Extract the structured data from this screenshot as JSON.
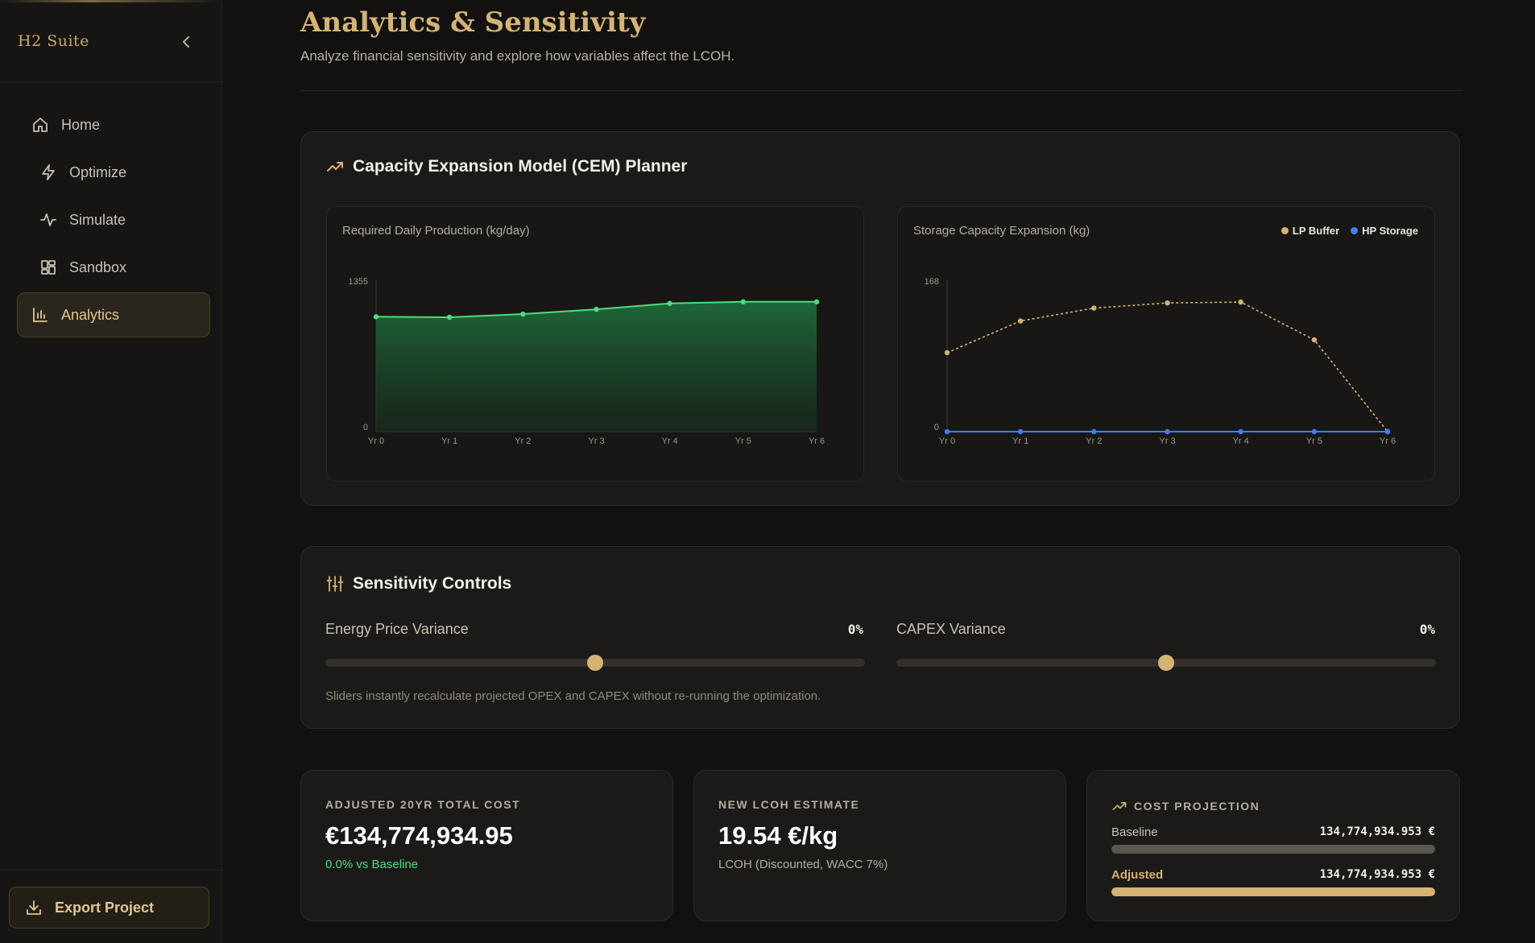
{
  "sidebar": {
    "brand": "H2 Suite",
    "items": [
      {
        "label": "Home",
        "icon": "home-icon"
      },
      {
        "label": "Optimize",
        "icon": "lightning-icon"
      },
      {
        "label": "Simulate",
        "icon": "pulse-icon"
      },
      {
        "label": "Sandbox",
        "icon": "grid-icon"
      },
      {
        "label": "Analytics",
        "icon": "bar-chart-icon",
        "active": true
      }
    ],
    "export_label": "Export Project"
  },
  "header": {
    "title": "Analytics & Sensitivity",
    "subtitle": "Analyze financial sensitivity and explore how variables affect the LCOH."
  },
  "cem": {
    "title": "Capacity Expansion Model (CEM) Planner"
  },
  "chart_data": [
    {
      "type": "area",
      "title": "Required Daily Production (kg/day)",
      "categories": [
        "Yr 0",
        "Yr 1",
        "Yr 2",
        "Yr 3",
        "Yr 4",
        "Yr 5",
        "Yr 6"
      ],
      "series": [
        {
          "values": [
            1080,
            1075,
            1105,
            1150,
            1205,
            1220,
            1220
          ],
          "color": "#4ade80"
        }
      ],
      "ylim": [
        0,
        1355
      ],
      "yticks": [
        "0",
        "1355"
      ],
      "grid": false
    },
    {
      "type": "line",
      "title": "Storage Capacity Expansion (kg)",
      "categories": [
        "Yr 0",
        "Yr 1",
        "Yr 2",
        "Yr 3",
        "Yr 4",
        "Yr 5",
        "Yr 6"
      ],
      "series": [
        {
          "name": "LP Buffer",
          "values": [
            92,
            129,
            144,
            150,
            151,
            107,
            0
          ],
          "color": "#d4b373",
          "dashed": true
        },
        {
          "name": "HP Storage",
          "values": [
            0,
            0,
            0,
            0,
            0,
            0,
            0
          ],
          "color": "#3b82f6",
          "dashed": false
        }
      ],
      "ylim": [
        0,
        168
      ],
      "yticks": [
        "0",
        "168"
      ],
      "legend": "top-right",
      "grid": false
    }
  ],
  "sensitivity": {
    "title": "Sensitivity Controls",
    "energy_label": "Energy Price Variance",
    "energy_value": "0%",
    "energy_position": 0.5,
    "capex_label": "CAPEX Variance",
    "capex_value": "0%",
    "capex_position": 0.5,
    "note": "Sliders instantly recalculate projected OPEX and CAPEX without re-running the optimization."
  },
  "kpis": {
    "total_cost_label": "ADJUSTED 20YR TOTAL COST",
    "total_cost_value": "€134,774,934.95",
    "total_cost_delta": "0.0% vs Baseline",
    "lcoh_label": "NEW LCOH ESTIMATE",
    "lcoh_value": "19.54 €/kg",
    "lcoh_sub": "LCOH (Discounted, WACC 7%)",
    "projection_label": "COST PROJECTION",
    "baseline_label": "Baseline",
    "baseline_value": "134,774,934.953 €",
    "baseline_fraction": 1.0,
    "adjusted_label": "Adjusted",
    "adjusted_value": "134,774,934.953 €",
    "adjusted_fraction": 1.0
  },
  "colors": {
    "accent": "#d4b373",
    "positive": "#4ade80",
    "hp_storage": "#3b82f6"
  }
}
